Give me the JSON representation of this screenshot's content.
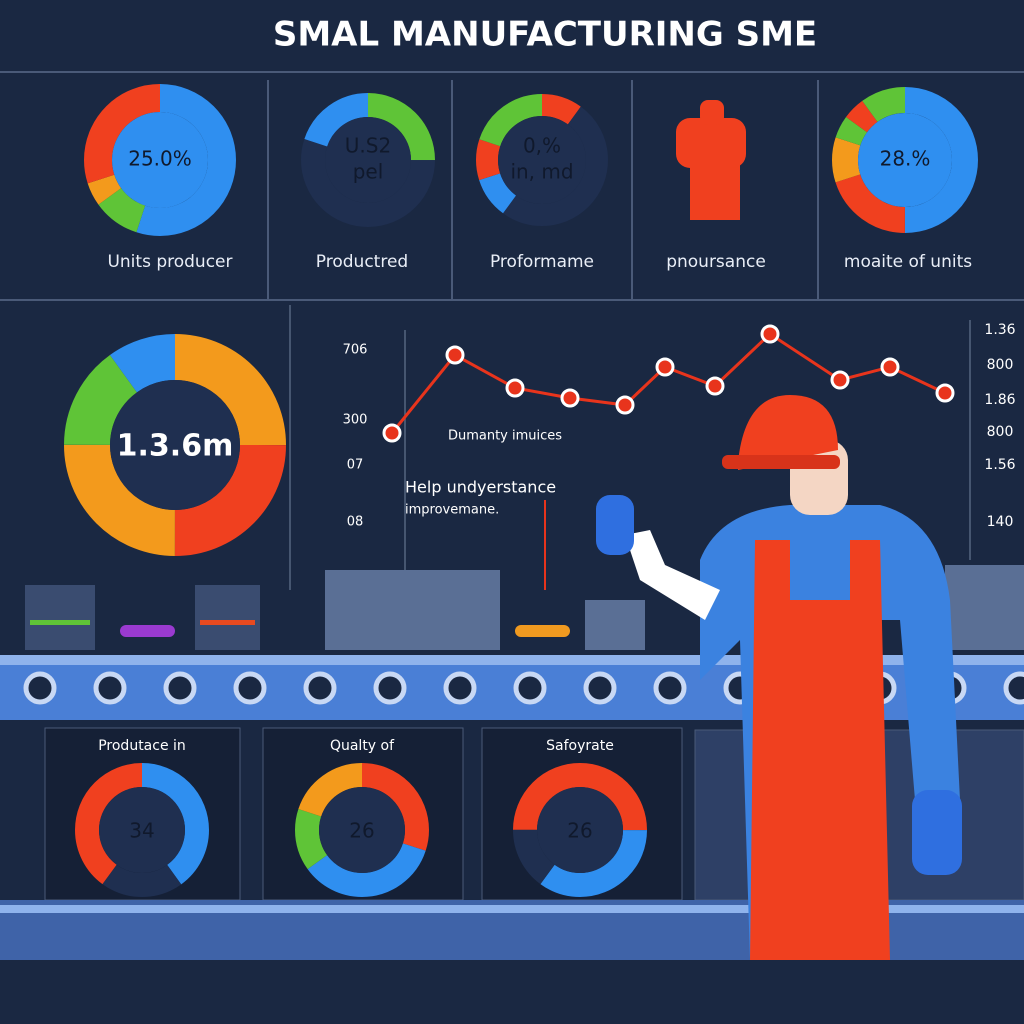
{
  "header": {
    "title": "SMAL MANUFACTURING SME"
  },
  "kpi_cards": [
    {
      "value": [
        "25.0%"
      ],
      "label": "Units producer"
    },
    {
      "value": [
        "U.S2",
        "pel"
      ],
      "label": "Productred"
    },
    {
      "value": [
        "0,%",
        "in, md"
      ],
      "label": "Proformame"
    },
    {
      "label": "pnoursance"
    },
    {
      "value": [
        "28.%"
      ],
      "label": "moaite of units"
    }
  ],
  "center_donut": {
    "value": "1.3.6m"
  },
  "trend_panel": {
    "left_axis": [
      "706",
      "300",
      "07",
      "08"
    ],
    "right_axis": [
      "1.36",
      "800",
      "1.86",
      "800",
      "1.56",
      "140"
    ],
    "annotation": "Dumanty imuices",
    "note": [
      "Help undyerstance",
      "improvemane."
    ]
  },
  "bottom_gauges": [
    {
      "label": "Produtace in",
      "value": "34"
    },
    {
      "label": "Qualty of",
      "value": "26"
    },
    {
      "label": "Safoyrate",
      "value": "26"
    }
  ]
}
